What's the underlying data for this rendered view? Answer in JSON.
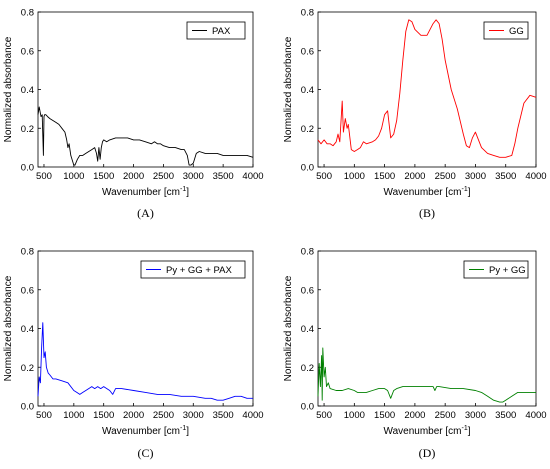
{
  "chart_data": [
    {
      "type": "line",
      "panel_label": "(A)",
      "ylabel": "Normalized absorbance",
      "xlabel_main": "Wavenumber [cm",
      "xlabel_sup": "-1",
      "xlabel_end": "]",
      "xlim": [
        400,
        4000
      ],
      "ylim": [
        0,
        0.8
      ],
      "xticks": [
        500,
        1000,
        1500,
        2000,
        2500,
        3000,
        3500,
        4000
      ],
      "yticks": [
        0.0,
        0.2,
        0.4,
        0.6,
        0.8
      ],
      "legend": "top-right",
      "color": "#000000",
      "series": [
        {
          "name": "PAX",
          "x": [
            400,
            420,
            450,
            470,
            490,
            500,
            510,
            530,
            560,
            600,
            650,
            700,
            750,
            800,
            850,
            880,
            900,
            920,
            950,
            980,
            1000,
            1020,
            1060,
            1100,
            1150,
            1200,
            1250,
            1300,
            1350,
            1380,
            1400,
            1420,
            1440,
            1460,
            1480,
            1500,
            1550,
            1600,
            1700,
            1800,
            1900,
            2000,
            2100,
            2200,
            2300,
            2350,
            2400,
            2450,
            2500,
            2600,
            2700,
            2800,
            2850,
            2900,
            2930,
            2960,
            3000,
            3050,
            3100,
            3200,
            3300,
            3400,
            3500,
            3600,
            3700,
            3800,
            3900,
            4000
          ],
          "y": [
            0.27,
            0.31,
            0.26,
            0.27,
            0.06,
            0.26,
            0.27,
            0.27,
            0.26,
            0.25,
            0.24,
            0.23,
            0.22,
            0.2,
            0.18,
            0.14,
            0.1,
            0.12,
            0.06,
            0.03,
            0.01,
            0.01,
            0.04,
            0.06,
            0.06,
            0.07,
            0.08,
            0.09,
            0.1,
            0.07,
            0.03,
            0.1,
            0.04,
            0.1,
            0.13,
            0.14,
            0.13,
            0.14,
            0.15,
            0.15,
            0.15,
            0.14,
            0.14,
            0.13,
            0.12,
            0.13,
            0.12,
            0.12,
            0.11,
            0.1,
            0.1,
            0.09,
            0.09,
            0.06,
            0.01,
            0.01,
            0.02,
            0.07,
            0.08,
            0.07,
            0.07,
            0.07,
            0.06,
            0.06,
            0.06,
            0.06,
            0.06,
            0.05
          ]
        }
      ]
    },
    {
      "type": "line",
      "panel_label": "(B)",
      "ylabel": "Normalized absorbance",
      "xlabel_main": "Wavenumber [cm",
      "xlabel_sup": "-1",
      "xlabel_end": "]",
      "xlim": [
        400,
        4000
      ],
      "ylim": [
        0,
        0.8
      ],
      "xticks": [
        500,
        1000,
        1500,
        2000,
        2500,
        3000,
        3500,
        4000
      ],
      "yticks": [
        0.0,
        0.2,
        0.4,
        0.6,
        0.8
      ],
      "legend": "top-right",
      "color": "#ff0000",
      "series": [
        {
          "name": "GG",
          "x": [
            400,
            450,
            500,
            550,
            600,
            650,
            700,
            730,
            760,
            800,
            820,
            850,
            880,
            900,
            950,
            1000,
            1050,
            1100,
            1150,
            1200,
            1300,
            1350,
            1400,
            1450,
            1500,
            1550,
            1600,
            1650,
            1700,
            1750,
            1800,
            1850,
            1900,
            1950,
            2000,
            2100,
            2200,
            2300,
            2350,
            2400,
            2450,
            2500,
            2600,
            2700,
            2800,
            2850,
            2900,
            2950,
            3000,
            3050,
            3100,
            3200,
            3300,
            3400,
            3500,
            3600,
            3650,
            3700,
            3800,
            3900,
            4000
          ],
          "y": [
            0.14,
            0.12,
            0.14,
            0.12,
            0.12,
            0.11,
            0.13,
            0.17,
            0.13,
            0.34,
            0.18,
            0.25,
            0.2,
            0.22,
            0.09,
            0.08,
            0.09,
            0.1,
            0.13,
            0.12,
            0.13,
            0.14,
            0.16,
            0.2,
            0.27,
            0.29,
            0.15,
            0.17,
            0.24,
            0.38,
            0.55,
            0.7,
            0.76,
            0.75,
            0.71,
            0.68,
            0.68,
            0.74,
            0.76,
            0.74,
            0.66,
            0.55,
            0.4,
            0.3,
            0.17,
            0.11,
            0.1,
            0.15,
            0.18,
            0.14,
            0.1,
            0.07,
            0.06,
            0.05,
            0.05,
            0.06,
            0.12,
            0.2,
            0.33,
            0.37,
            0.36
          ]
        }
      ]
    },
    {
      "type": "line",
      "panel_label": "(C)",
      "ylabel": "Normalized absorbance",
      "xlabel_main": "Wavenumber [cm",
      "xlabel_sup": "-1",
      "xlabel_end": "]",
      "xlim": [
        400,
        4000
      ],
      "ylim": [
        0,
        0.8
      ],
      "xticks": [
        500,
        1000,
        1500,
        2000,
        2500,
        3000,
        3500,
        4000
      ],
      "yticks": [
        0.0,
        0.2,
        0.4,
        0.6,
        0.8
      ],
      "legend": "top-right",
      "color": "#0000ff",
      "series": [
        {
          "name": "Py + GG + PAX",
          "x": [
            400,
            420,
            440,
            460,
            480,
            500,
            520,
            540,
            570,
            600,
            650,
            700,
            800,
            900,
            1000,
            1050,
            1100,
            1150,
            1200,
            1300,
            1350,
            1400,
            1450,
            1500,
            1600,
            1650,
            1700,
            1800,
            2000,
            2200,
            2400,
            2600,
            2800,
            3000,
            3200,
            3300,
            3400,
            3450,
            3500,
            3600,
            3700,
            3800,
            3900,
            4000
          ],
          "y": [
            0.05,
            0.15,
            0.12,
            0.3,
            0.43,
            0.25,
            0.28,
            0.2,
            0.17,
            0.16,
            0.14,
            0.14,
            0.13,
            0.12,
            0.08,
            0.07,
            0.06,
            0.07,
            0.08,
            0.1,
            0.09,
            0.1,
            0.09,
            0.1,
            0.08,
            0.06,
            0.09,
            0.09,
            0.08,
            0.07,
            0.06,
            0.06,
            0.05,
            0.05,
            0.04,
            0.04,
            0.03,
            0.03,
            0.03,
            0.04,
            0.05,
            0.05,
            0.04,
            0.04
          ]
        }
      ]
    },
    {
      "type": "line",
      "panel_label": "(D)",
      "ylabel": "Normalized absorbance",
      "xlabel_main": "Wavenumber [cm",
      "xlabel_sup": "-1",
      "xlabel_end": "]",
      "xlim": [
        400,
        4000
      ],
      "ylim": [
        0,
        0.8
      ],
      "xticks": [
        500,
        1000,
        1500,
        2000,
        2500,
        3000,
        3500,
        4000
      ],
      "yticks": [
        0.0,
        0.2,
        0.4,
        0.6,
        0.8
      ],
      "legend": "top-right",
      "color": "#008000",
      "series": [
        {
          "name": "Py + GG",
          "x": [
            400,
            420,
            440,
            460,
            470,
            480,
            500,
            520,
            540,
            570,
            600,
            700,
            800,
            900,
            1000,
            1050,
            1100,
            1200,
            1300,
            1400,
            1500,
            1550,
            1600,
            1650,
            1700,
            1800,
            2000,
            2200,
            2300,
            2330,
            2360,
            2400,
            2600,
            2800,
            3000,
            3100,
            3200,
            3300,
            3400,
            3450,
            3500,
            3600,
            3700,
            3800,
            3900,
            4000
          ],
          "y": [
            0.05,
            0.22,
            0.1,
            0.26,
            0.03,
            0.3,
            0.15,
            0.2,
            0.1,
            0.12,
            0.09,
            0.08,
            0.08,
            0.09,
            0.08,
            0.07,
            0.07,
            0.07,
            0.08,
            0.09,
            0.09,
            0.08,
            0.04,
            0.08,
            0.09,
            0.1,
            0.1,
            0.1,
            0.1,
            0.08,
            0.1,
            0.1,
            0.09,
            0.09,
            0.08,
            0.07,
            0.05,
            0.03,
            0.02,
            0.02,
            0.03,
            0.05,
            0.07,
            0.07,
            0.07,
            0.07
          ]
        }
      ]
    }
  ]
}
